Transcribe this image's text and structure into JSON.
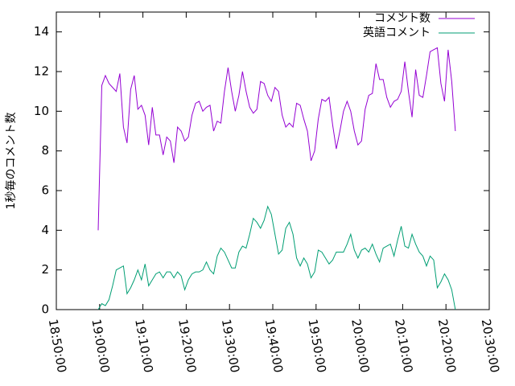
{
  "chart_data": {
    "type": "line",
    "ylabel": "1秒毎のコメント数",
    "x": [
      "18:59:40",
      "19:00:30",
      "19:01:20",
      "19:02:10",
      "19:03:00",
      "19:03:50",
      "19:04:40",
      "19:05:30",
      "19:06:20",
      "19:07:10",
      "19:08:00",
      "19:08:50",
      "19:09:40",
      "19:10:30",
      "19:11:20",
      "19:12:10",
      "19:13:00",
      "19:13:50",
      "19:14:40",
      "19:15:30",
      "19:16:20",
      "19:17:10",
      "19:18:00",
      "19:18:50",
      "19:19:40",
      "19:20:30",
      "19:21:20",
      "19:22:10",
      "19:23:00",
      "19:23:50",
      "19:24:40",
      "19:25:30",
      "19:26:20",
      "19:27:10",
      "19:28:00",
      "19:28:50",
      "19:29:40",
      "19:30:30",
      "19:31:20",
      "19:32:10",
      "19:33:00",
      "19:33:50",
      "19:34:40",
      "19:35:30",
      "19:36:20",
      "19:37:10",
      "19:38:00",
      "19:38:50",
      "19:39:40",
      "19:40:30",
      "19:41:20",
      "19:42:10",
      "19:43:00",
      "19:43:50",
      "19:44:40",
      "19:45:30",
      "19:46:20",
      "19:47:10",
      "19:48:00",
      "19:48:50",
      "19:49:40",
      "19:50:30",
      "19:51:20",
      "19:52:10",
      "19:53:00",
      "19:53:50",
      "19:54:40",
      "19:55:30",
      "19:56:20",
      "19:57:10",
      "19:58:00",
      "19:58:50",
      "19:59:40",
      "20:00:30",
      "20:01:20",
      "20:02:10",
      "20:03:00",
      "20:03:50",
      "20:04:40",
      "20:05:30",
      "20:06:20",
      "20:07:10",
      "20:08:00",
      "20:08:50",
      "20:09:40",
      "20:10:30",
      "20:11:20",
      "20:12:10",
      "20:13:00",
      "20:13:50",
      "20:14:40",
      "20:15:30",
      "20:16:20",
      "20:17:10",
      "20:18:00",
      "20:18:50",
      "20:19:40",
      "20:20:30",
      "20:21:20",
      "20:22:10"
    ],
    "series": [
      {
        "name": "コメント数",
        "color": "#9400d3",
        "values": [
          4.0,
          11.3,
          11.8,
          11.4,
          11.2,
          11.0,
          11.9,
          9.2,
          8.4,
          11.1,
          11.8,
          10.1,
          10.3,
          9.8,
          8.3,
          10.2,
          8.8,
          8.8,
          7.8,
          8.7,
          8.5,
          7.4,
          9.2,
          9.0,
          8.5,
          8.7,
          9.8,
          10.4,
          10.5,
          10.0,
          10.2,
          10.3,
          9.0,
          9.5,
          9.4,
          11.0,
          12.2,
          11.0,
          10.0,
          10.8,
          12.0,
          11.0,
          10.2,
          9.9,
          10.1,
          11.5,
          11.4,
          10.8,
          10.5,
          11.2,
          11.0,
          9.8,
          9.2,
          9.4,
          9.2,
          10.4,
          10.3,
          9.6,
          9.0,
          7.5,
          8.0,
          9.6,
          10.6,
          10.5,
          10.7,
          9.3,
          8.1,
          9.0,
          10.0,
          10.5,
          10.0,
          9.0,
          8.3,
          8.5,
          10.1,
          10.8,
          10.9,
          12.4,
          11.6,
          11.6,
          10.7,
          10.2,
          10.5,
          10.6,
          11.0,
          12.5,
          11.0,
          9.7,
          12.1,
          10.8,
          10.7,
          11.8,
          13.0,
          13.1,
          13.2,
          11.4,
          10.5,
          13.1,
          11.5,
          9.0
        ]
      },
      {
        "name": "英語コメント",
        "color": "#009e73",
        "values": [
          0.0,
          0.3,
          0.2,
          0.5,
          1.2,
          2.0,
          2.1,
          2.2,
          0.8,
          1.1,
          1.5,
          2.0,
          1.5,
          2.3,
          1.2,
          1.5,
          1.8,
          1.9,
          1.6,
          1.9,
          1.9,
          1.6,
          1.9,
          1.7,
          1.0,
          1.5,
          1.8,
          1.9,
          1.9,
          2.0,
          2.4,
          2.0,
          1.8,
          2.7,
          3.1,
          2.9,
          2.5,
          2.1,
          2.1,
          2.9,
          3.2,
          3.1,
          3.8,
          4.6,
          4.4,
          4.1,
          4.5,
          5.2,
          4.8,
          3.8,
          2.8,
          3.0,
          4.1,
          4.4,
          3.8,
          2.6,
          2.2,
          2.6,
          2.3,
          1.6,
          1.9,
          3.0,
          2.9,
          2.6,
          2.3,
          2.5,
          2.9,
          2.9,
          2.9,
          3.3,
          3.8,
          3.0,
          2.6,
          3.0,
          3.1,
          2.9,
          3.3,
          2.8,
          2.4,
          3.1,
          3.2,
          3.3,
          2.7,
          3.5,
          4.2,
          3.2,
          3.1,
          3.8,
          3.3,
          2.9,
          2.7,
          2.2,
          2.7,
          2.5,
          1.1,
          1.4,
          1.8,
          1.5,
          1.0,
          0.0
        ]
      }
    ],
    "xlim": [
      "18:50:00",
      "20:30:00"
    ],
    "xticks": [
      "18:50:00",
      "19:00:00",
      "19:10:00",
      "19:20:00",
      "19:30:00",
      "19:40:00",
      "19:50:00",
      "20:00:00",
      "20:10:00",
      "20:20:00",
      "20:30:00"
    ],
    "ylim": [
      0,
      15
    ],
    "yticks": [
      0,
      2,
      4,
      6,
      8,
      10,
      12,
      14
    ],
    "legend": "top-right",
    "grid": false
  }
}
